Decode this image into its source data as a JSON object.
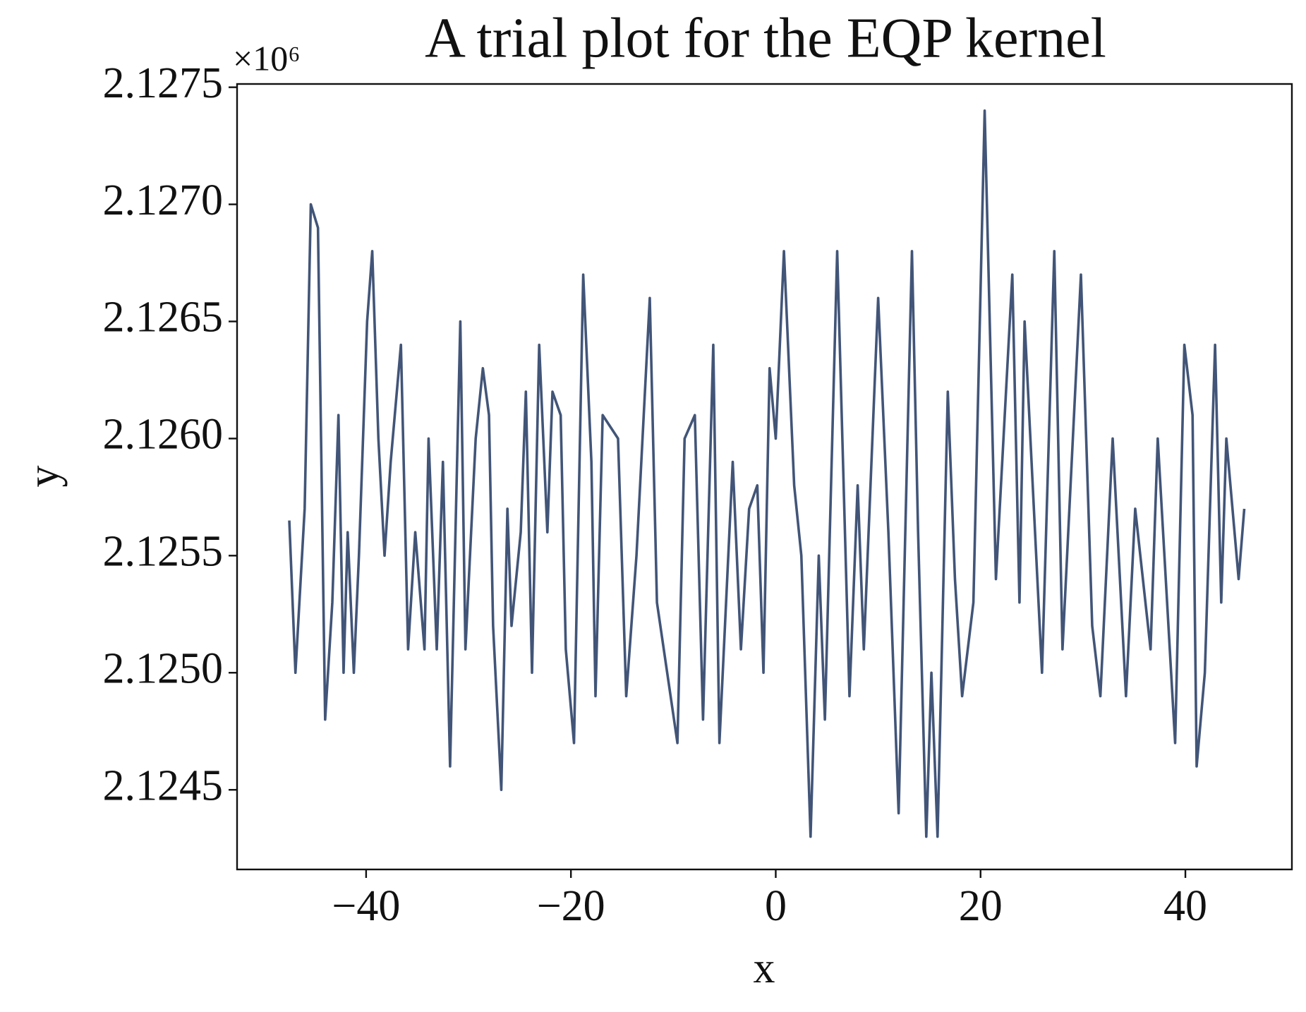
{
  "chart_data": {
    "type": "line",
    "title": "A trial plot for the EQP kernel",
    "x_label": "x",
    "y_label": "y",
    "y_offset_label": "×10⁶",
    "xlim": [
      -52.6,
      50.4
    ],
    "ylim": [
      2.12416,
      2.127514
    ],
    "xticks": [
      {
        "value": -40,
        "label": "−40"
      },
      {
        "value": -20,
        "label": "−20"
      },
      0,
      20,
      40
    ],
    "yticks": [
      {
        "value": 2.1245,
        "label": "2.1245"
      },
      {
        "value": 2.125,
        "label": "2.1250"
      },
      {
        "value": 2.1255,
        "label": "2.1255"
      },
      {
        "value": 2.126,
        "label": "2.1260"
      },
      {
        "value": 2.1265,
        "label": "2.1265"
      },
      {
        "value": 2.127,
        "label": "2.1270"
      },
      {
        "value": 2.1275,
        "label": "2.1275"
      }
    ],
    "grid": false,
    "series": [
      {
        "name": "y",
        "color": "#425578",
        "x": [
          -47.5,
          -46.9,
          -46.0,
          -45.4,
          -44.7,
          -44.0,
          -43.3,
          -42.7,
          -42.2,
          -41.8,
          -41.2,
          -40.7,
          -39.9,
          -39.4,
          -38.8,
          -38.2,
          -37.6,
          -36.6,
          -35.9,
          -35.2,
          -34.3,
          -33.9,
          -33.1,
          -32.5,
          -31.8,
          -30.8,
          -30.3,
          -29.3,
          -28.6,
          -28.0,
          -27.6,
          -26.8,
          -26.2,
          -25.8,
          -24.9,
          -24.4,
          -23.8,
          -23.1,
          -22.3,
          -21.8,
          -21.0,
          -20.5,
          -19.7,
          -18.8,
          -18.0,
          -17.6,
          -16.9,
          -15.4,
          -14.6,
          -13.6,
          -12.3,
          -11.6,
          -10.6,
          -9.6,
          -8.9,
          -7.9,
          -7.1,
          -6.1,
          -5.5,
          -4.2,
          -3.4,
          -2.6,
          -1.8,
          -1.2,
          -0.6,
          0.0,
          0.8,
          1.8,
          2.5,
          3.4,
          4.2,
          4.8,
          6.0,
          7.2,
          8.0,
          8.6,
          10.0,
          11.0,
          12.0,
          13.3,
          13.9,
          14.7,
          15.2,
          15.8,
          16.8,
          17.5,
          18.2,
          19.3,
          20.4,
          21.5,
          23.1,
          23.8,
          24.3,
          26.0,
          27.2,
          28.0,
          29.8,
          30.9,
          31.7,
          32.9,
          34.2,
          35.1,
          36.6,
          37.3,
          39.0,
          39.9,
          40.7,
          41.1,
          41.9,
          42.9,
          43.5,
          44.0,
          45.2,
          45.75
        ],
        "values": [
          2.12565,
          2.125,
          2.1257,
          2.127,
          2.1269,
          2.1248,
          2.1253,
          2.1261,
          2.125,
          2.1256,
          2.125,
          2.1255,
          2.1265,
          2.1268,
          2.126,
          2.1255,
          2.1259,
          2.1264,
          2.1251,
          2.1256,
          2.1251,
          2.126,
          2.1251,
          2.1259,
          2.1246,
          2.1265,
          2.1251,
          2.126,
          2.1263,
          2.1261,
          2.1252,
          2.1245,
          2.1257,
          2.1252,
          2.1256,
          2.1262,
          2.125,
          2.1264,
          2.1256,
          2.1262,
          2.1261,
          2.1251,
          2.1247,
          2.1267,
          2.1259,
          2.1249,
          2.1261,
          2.126,
          2.1249,
          2.1255,
          2.1266,
          2.1253,
          2.125,
          2.1247,
          2.126,
          2.1261,
          2.1248,
          2.1264,
          2.1247,
          2.1259,
          2.1251,
          2.1257,
          2.1258,
          2.125,
          2.1263,
          2.126,
          2.1268,
          2.1258,
          2.1255,
          2.1243,
          2.1255,
          2.1248,
          2.1268,
          2.1249,
          2.1258,
          2.1251,
          2.1266,
          2.1256,
          2.1244,
          2.1268,
          2.1256,
          2.1243,
          2.125,
          2.1243,
          2.1262,
          2.1254,
          2.1249,
          2.1253,
          2.1274,
          2.1254,
          2.1267,
          2.1253,
          2.1265,
          2.125,
          2.1268,
          2.1251,
          2.1267,
          2.1252,
          2.1249,
          2.126,
          2.1249,
          2.1257,
          2.1251,
          2.126,
          2.1247,
          2.1264,
          2.1261,
          2.1246,
          2.125,
          2.1264,
          2.1253,
          2.126,
          2.1254,
          2.1257
        ]
      }
    ]
  }
}
